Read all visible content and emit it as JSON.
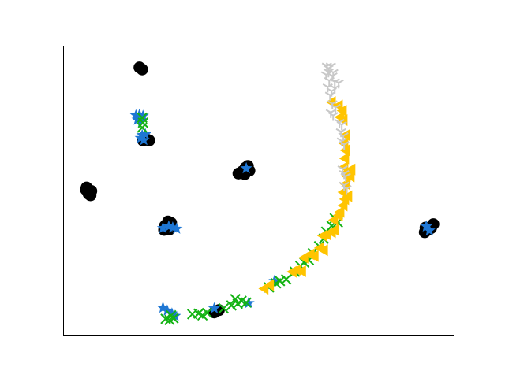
{
  "chart_data": {
    "type": "scatter",
    "title": "",
    "xlabel": "",
    "ylabel": "",
    "xlim": [
      0,
      100
    ],
    "ylim": [
      0,
      100
    ],
    "axis_ticks": "none",
    "grid": false,
    "legend": "none",
    "series": [
      {
        "marker": "circle",
        "color": "#000000",
        "points": [
          [
            5.8,
            50.5
          ],
          [
            6.5,
            49.0
          ],
          [
            7.2,
            50.0
          ],
          [
            6.0,
            51.2
          ],
          [
            7.0,
            48.5
          ],
          [
            19.5,
            92.5
          ],
          [
            20.2,
            91.8
          ],
          [
            20.4,
            67.4
          ],
          [
            21.3,
            67.8
          ],
          [
            22.0,
            67.4
          ],
          [
            26.0,
            38.0
          ],
          [
            26.8,
            39.5
          ],
          [
            27.6,
            39.0
          ],
          [
            27.2,
            36.8
          ],
          [
            25.8,
            36.6
          ],
          [
            44.8,
            56.0
          ],
          [
            45.6,
            56.6
          ],
          [
            46.4,
            55.8
          ],
          [
            47.2,
            58.6
          ],
          [
            47.6,
            57.0
          ],
          [
            46.6,
            58.0
          ],
          [
            38.6,
            8.2
          ],
          [
            39.8,
            9.0
          ],
          [
            93.3,
            36.6
          ],
          [
            92.6,
            37.4
          ],
          [
            94.0,
            37.2
          ],
          [
            94.6,
            38.6
          ],
          [
            92.4,
            35.8
          ]
        ]
      },
      {
        "marker": "star",
        "color": "#1f77d4",
        "points": [
          [
            18.6,
            76.0
          ],
          [
            19.5,
            76.2
          ],
          [
            20.4,
            75.8
          ],
          [
            19.0,
            74.5
          ],
          [
            20.1,
            74.0
          ],
          [
            20.2,
            69.2
          ],
          [
            19.8,
            68.2
          ],
          [
            20.6,
            67.5
          ],
          [
            21.0,
            69.5
          ],
          [
            25.5,
            37.2
          ],
          [
            27.0,
            37.8
          ],
          [
            28.0,
            37.4
          ],
          [
            29.0,
            37.0
          ],
          [
            46.8,
            57.8
          ],
          [
            25.5,
            9.8
          ],
          [
            26.6,
            8.8
          ],
          [
            27.8,
            7.8
          ],
          [
            28.6,
            7.0
          ],
          [
            38.6,
            9.6
          ],
          [
            47.4,
            11.4
          ],
          [
            54.0,
            19.0
          ],
          [
            92.8,
            37.8
          ],
          [
            93.6,
            36.4
          ]
        ]
      },
      {
        "marker": "x",
        "color": "#13b313",
        "points": [
          [
            20.2,
            75.2
          ],
          [
            20.4,
            73.5
          ],
          [
            20.2,
            71.8
          ],
          [
            26.2,
            6.0
          ],
          [
            27.2,
            5.6
          ],
          [
            28.2,
            6.2
          ],
          [
            27.6,
            7.2
          ],
          [
            33.0,
            7.6
          ],
          [
            34.6,
            7.8
          ],
          [
            35.6,
            7.2
          ],
          [
            36.8,
            8.0
          ],
          [
            41.0,
            9.6
          ],
          [
            43.0,
            10.6
          ],
          [
            44.6,
            11.2
          ],
          [
            45.6,
            12.2
          ],
          [
            46.8,
            11.6
          ],
          [
            44.0,
            12.8
          ],
          [
            52.6,
            16.8
          ],
          [
            54.4,
            18.2
          ],
          [
            55.4,
            19.0
          ],
          [
            57.0,
            19.6
          ],
          [
            59.2,
            22.2
          ],
          [
            60.6,
            24.2
          ],
          [
            61.6,
            25.4
          ],
          [
            62.8,
            26.2
          ],
          [
            63.8,
            28.6
          ],
          [
            65.4,
            31.0
          ],
          [
            66.6,
            33.6
          ],
          [
            67.2,
            36.0
          ],
          [
            68.6,
            38.0
          ],
          [
            69.4,
            40.6
          ],
          [
            70.2,
            39.2
          ]
        ]
      },
      {
        "marker": "triangle-left",
        "color": "#ffc400",
        "points": [
          [
            51.4,
            16.4
          ],
          [
            52.8,
            17.6
          ],
          [
            58.6,
            22.2
          ],
          [
            59.8,
            22.8
          ],
          [
            61.0,
            22.4
          ],
          [
            61.6,
            27.0
          ],
          [
            63.2,
            28.2
          ],
          [
            64.2,
            27.6
          ],
          [
            65.6,
            30.4
          ],
          [
            66.6,
            29.6
          ],
          [
            66.4,
            34.6
          ],
          [
            67.4,
            35.0
          ],
          [
            68.6,
            35.8
          ],
          [
            69.4,
            36.6
          ],
          [
            69.2,
            40.0
          ],
          [
            70.4,
            41.6
          ],
          [
            70.8,
            42.8
          ],
          [
            71.6,
            45.0
          ],
          [
            72.0,
            47.2
          ],
          [
            72.8,
            48.2
          ],
          [
            71.6,
            49.6
          ],
          [
            72.2,
            52.4
          ],
          [
            72.4,
            55.2
          ],
          [
            72.8,
            56.6
          ],
          [
            73.6,
            57.4
          ],
          [
            73.4,
            55.0
          ],
          [
            71.8,
            58.2
          ],
          [
            72.0,
            61.2
          ],
          [
            72.2,
            64.0
          ],
          [
            71.8,
            66.4
          ],
          [
            72.2,
            69.2
          ],
          [
            68.6,
            80.6
          ],
          [
            70.4,
            79.4
          ],
          [
            71.4,
            77.6
          ],
          [
            70.8,
            75.4
          ],
          [
            71.6,
            74.4
          ]
        ]
      },
      {
        "marker": "tri-down",
        "color": "#c8c8c8",
        "points": [
          [
            67.4,
            93.0
          ],
          [
            67.8,
            92.2
          ],
          [
            68.4,
            93.0
          ],
          [
            67.8,
            91.0
          ],
          [
            67.2,
            90.0
          ],
          [
            69.0,
            90.8
          ],
          [
            68.0,
            88.0
          ],
          [
            69.4,
            87.6
          ],
          [
            68.8,
            89.6
          ],
          [
            67.6,
            85.8
          ],
          [
            68.6,
            84.4
          ],
          [
            69.4,
            85.4
          ],
          [
            70.4,
            87.2
          ],
          [
            68.2,
            83.0
          ],
          [
            68.8,
            80.0
          ],
          [
            69.6,
            78.8
          ],
          [
            68.4,
            77.0
          ],
          [
            69.0,
            76.0
          ],
          [
            70.6,
            73.6
          ],
          [
            71.2,
            72.8
          ],
          [
            71.0,
            70.4
          ],
          [
            71.6,
            69.0
          ],
          [
            71.2,
            67.2
          ],
          [
            71.8,
            66.0
          ],
          [
            71.4,
            57.6
          ],
          [
            71.8,
            56.0
          ],
          [
            72.2,
            55.0
          ],
          [
            71.8,
            52.0
          ],
          [
            72.4,
            50.8
          ]
        ]
      }
    ]
  }
}
